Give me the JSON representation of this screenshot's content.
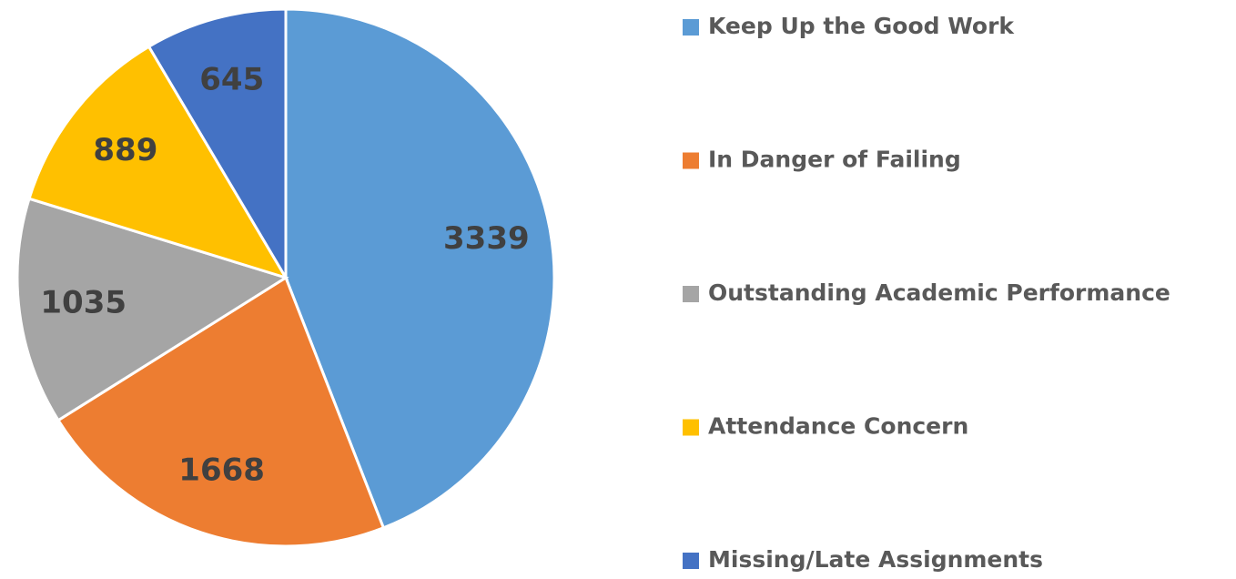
{
  "chart_data": {
    "type": "pie",
    "categories": [
      "Keep Up the Good Work",
      "In Danger of Failing",
      "Outstanding Academic Performance",
      "Attendance Concern",
      "Missing/Late Assignments"
    ],
    "values": [
      3339,
      1668,
      1035,
      889,
      645
    ],
    "colors": [
      "#5b9bd5",
      "#ed7d31",
      "#a5a5a5",
      "#ffc000",
      "#4472c4"
    ],
    "legend": "right"
  }
}
